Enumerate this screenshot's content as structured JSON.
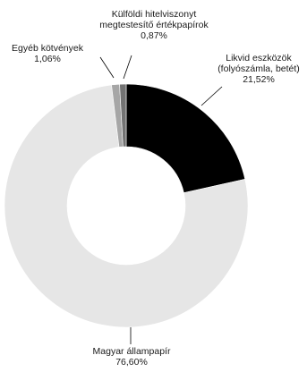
{
  "chart_data": {
    "type": "pie",
    "variant": "donut",
    "start_angle_deg": 0,
    "direction": "clockwise",
    "slices": [
      {
        "label_lines": [
          "Likvid eszközök",
          "(folyószámla, betét)",
          "21,52%"
        ],
        "value": 21.52,
        "color": "#000000"
      },
      {
        "label_lines": [
          "Magyar állampapír",
          "76,60%"
        ],
        "value": 76.6,
        "color": "#e6e6e6"
      },
      {
        "label_lines": [
          "Egyéb kötvények",
          "1,06%"
        ],
        "value": 1.06,
        "color": "#a6a6a6"
      },
      {
        "label_lines": [
          "Külföldi hitelviszonyt",
          "megtestesítő értékpapírok",
          "0,87%"
        ],
        "value": 0.87,
        "color": "#737373"
      }
    ]
  }
}
